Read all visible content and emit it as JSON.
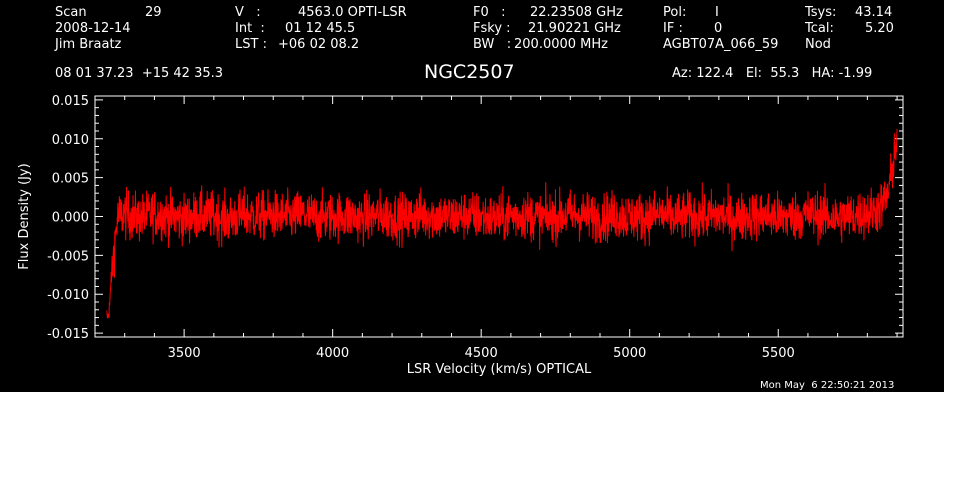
{
  "header": {
    "col1": {
      "scan_label": "Scan",
      "scan_value": "29",
      "date": "2008-12-14",
      "observer": "Jim Braatz"
    },
    "col2": {
      "v_label": "V   :",
      "v_value": "4563.0 OPTI-LSR",
      "int_label": "Int  :",
      "int_value": "01 12 45.5",
      "lst_label": "LST :",
      "lst_value": "+06 02 08.2"
    },
    "col3": {
      "f0_label": "F0   :",
      "f0_value": "22.23508 GHz",
      "fsky_label": "Fsky :",
      "fsky_value": "21.90221 GHz",
      "bw_label": "BW   :",
      "bw_value": "200.0000 MHz"
    },
    "col4": {
      "pol_label": "Pol:",
      "pol_value": "I",
      "if_label": "IF :",
      "if_value": "0",
      "project": "AGBT07A_066_59"
    },
    "col5": {
      "tsys_label": "Tsys:",
      "tsys_value": "43.14",
      "tcal_label": "Tcal:",
      "tcal_value": "5.20",
      "mode": "Nod"
    },
    "coords": "08 01 37.23  +15 42 35.3",
    "source": "NGC2507",
    "pointing": "Az: 122.4   El:  55.3   HA: -1.99",
    "timestamp": "Mon May  6 22:50:21 2013"
  },
  "chart_data": {
    "type": "line",
    "xlabel": "LSR Velocity (km/s) OPTICAL",
    "ylabel": "Flux Density (Jy)",
    "xlim": [
      3200,
      5920
    ],
    "ylim": [
      -0.0155,
      0.0155
    ],
    "xticks": [
      3500,
      4000,
      4500,
      5000,
      5500
    ],
    "xtick_labels": [
      "3500",
      "4000",
      "4500",
      "5000",
      "5500"
    ],
    "yticks": [
      -0.015,
      -0.01,
      -0.005,
      0.0,
      0.005,
      0.01,
      0.015
    ],
    "ytick_labels": [
      "-0.015",
      "-0.010",
      "-0.005",
      "0.000",
      "0.005",
      "0.010",
      "0.015"
    ],
    "series": [
      {
        "color": "#ff0000",
        "x": [
          3240,
          3245,
          3250,
          3255,
          3260,
          3265,
          3270,
          3275,
          3280,
          3300,
          3350,
          3400,
          3450,
          3500,
          3550,
          3600,
          3650,
          3700,
          3750,
          3800,
          3850,
          3900,
          3950,
          4000,
          4050,
          4100,
          4150,
          4200,
          4250,
          4300,
          4350,
          4400,
          4450,
          4500,
          4550,
          4600,
          4650,
          4700,
          4750,
          4800,
          4850,
          4900,
          4950,
          5000,
          5050,
          5100,
          5150,
          5200,
          5250,
          5300,
          5350,
          5400,
          5450,
          5500,
          5550,
          5600,
          5650,
          5700,
          5750,
          5800,
          5820,
          5840,
          5850,
          5860,
          5870,
          5880,
          5890,
          5900
        ],
        "y": [
          -0.0125,
          -0.013,
          -0.011,
          -0.008,
          -0.006,
          -0.004,
          -0.002,
          -0.0005,
          0.0,
          0.0003,
          -0.0002,
          0.0004,
          0.0,
          -0.0003,
          0.0002,
          0.0001,
          -0.0004,
          0.0003,
          0.0,
          0.0002,
          -0.0001,
          0.0003,
          -0.0002,
          0.0,
          0.0001,
          -0.0003,
          0.0002,
          0.0,
          -0.0002,
          0.0003,
          0.0001,
          -0.0001,
          0.0002,
          0.0,
          -0.0003,
          0.0001,
          0.0002,
          -0.0002,
          0.0,
          0.0003,
          0.0001,
          -0.0002,
          0.0002,
          0.0,
          -0.0001,
          0.0003,
          -0.0002,
          0.0001,
          0.0,
          0.0002,
          -0.0003,
          0.0001,
          0.0002,
          -0.0001,
          0.0,
          0.0003,
          0.0001,
          -0.0002,
          0.0001,
          0.0004,
          0.0007,
          0.001,
          0.0015,
          0.002,
          0.003,
          0.005,
          0.008,
          0.01
        ],
        "noise_rms": 0.0022
      }
    ],
    "grid": false,
    "background": "#000000",
    "axis_color": "#ffffff"
  }
}
